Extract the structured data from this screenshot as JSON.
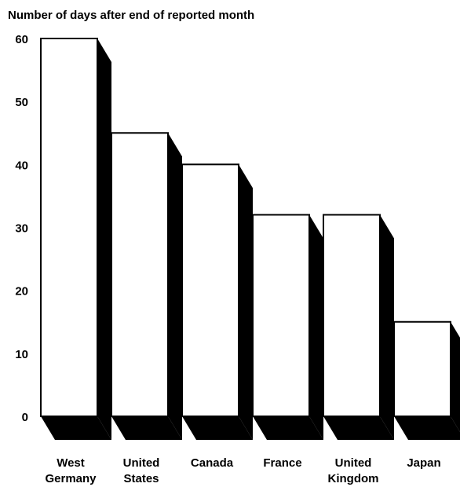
{
  "chart_data": {
    "type": "bar",
    "ylabel": "Number of days after end of reported month",
    "categories": [
      [
        "West",
        "Germany"
      ],
      [
        "United",
        "States"
      ],
      [
        "Canada"
      ],
      [
        "France"
      ],
      [
        "United",
        "Kingdom"
      ],
      [
        "Japan"
      ]
    ],
    "values": [
      60,
      45,
      40,
      32,
      32,
      15
    ],
    "ylim": [
      0,
      60
    ],
    "yticks": [
      0,
      10,
      20,
      30,
      40,
      50,
      60
    ],
    "grid": false,
    "style": "3d-shadowed"
  }
}
